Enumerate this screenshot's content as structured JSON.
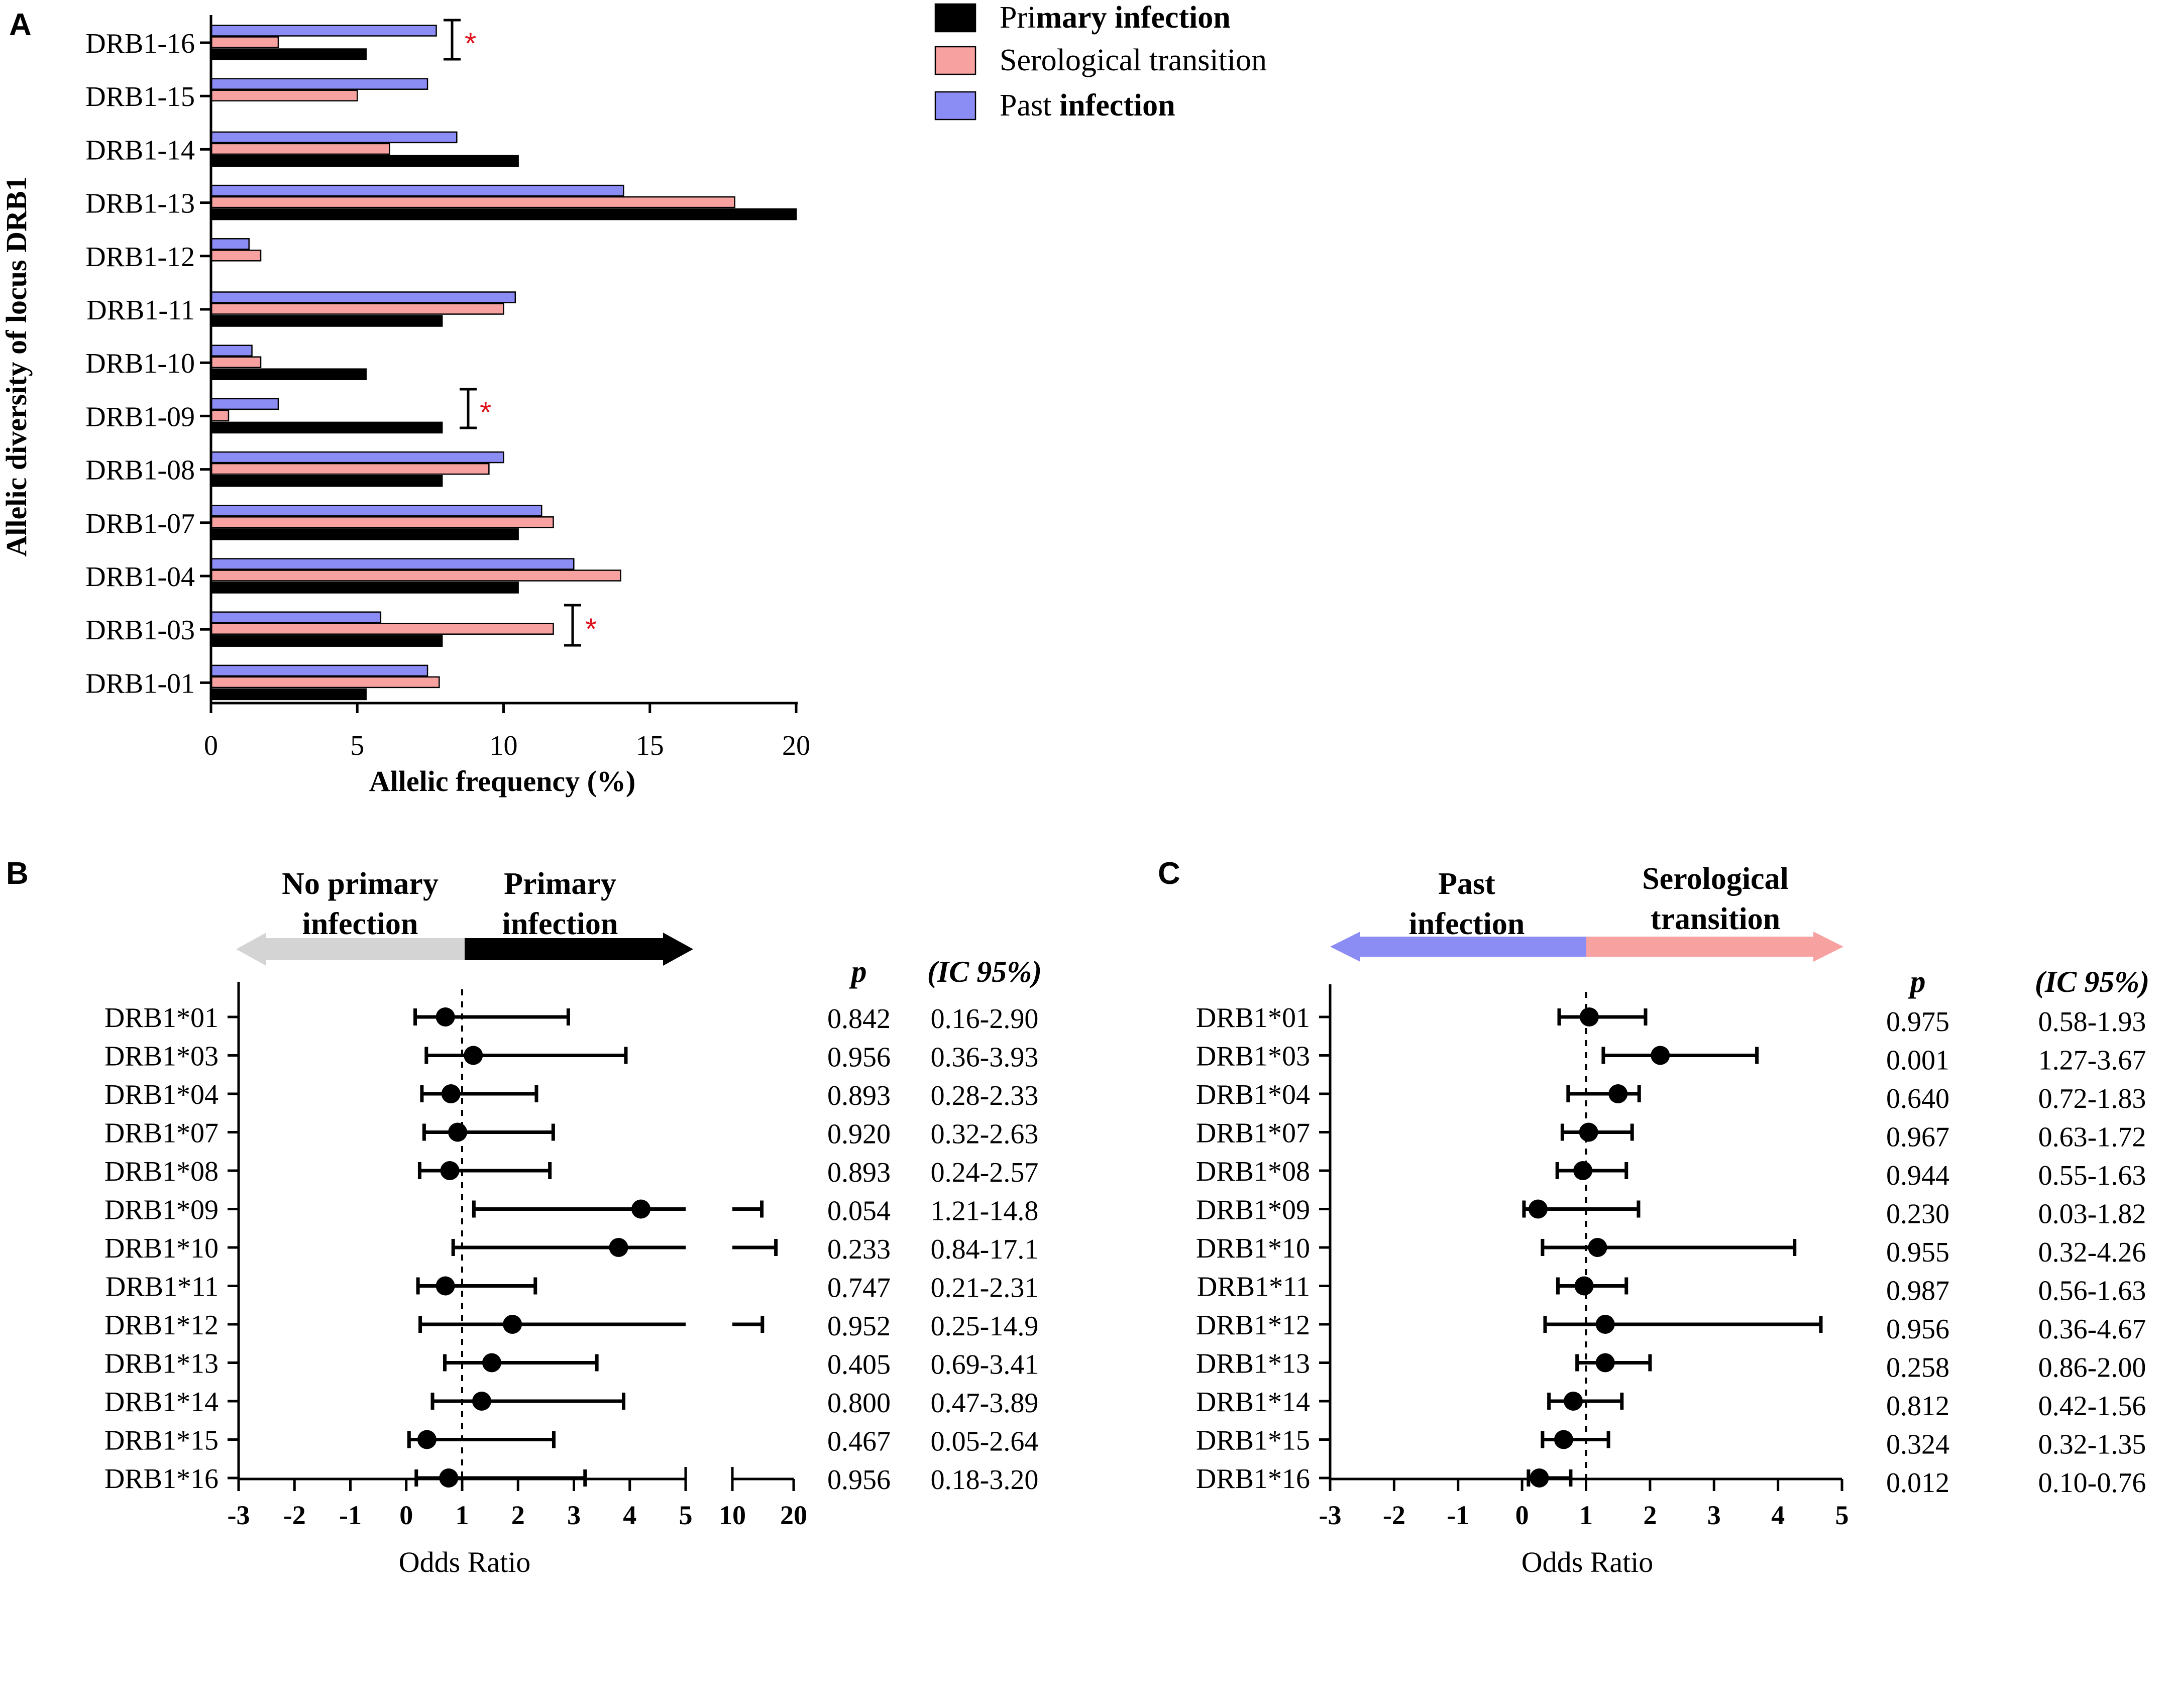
{
  "colors": {
    "primary": "#000000",
    "serological": "#F7A1A1",
    "past": "#8C8CF5",
    "star": "#E0141E",
    "gray_arrow": "#D4D4D4"
  },
  "chart_data": [
    {
      "panel": "A",
      "type": "bar",
      "orientation": "horizontal",
      "categories": [
        "DRB1-16",
        "DRB1-15",
        "DRB1-14",
        "DRB1-13",
        "DRB1-12",
        "DRB1-11",
        "DRB1-10",
        "DRB1-09",
        "DRB1-08",
        "DRB1-07",
        "DRB1-04",
        "DRB1-03",
        "DRB1-01"
      ],
      "series": [
        {
          "name": "Past infection",
          "values": [
            7.7,
            7.4,
            8.4,
            14.1,
            1.3,
            10.4,
            1.4,
            2.3,
            10.0,
            11.3,
            12.4,
            5.8,
            7.4
          ]
        },
        {
          "name": "Serological transition",
          "values": [
            2.3,
            5.0,
            6.1,
            17.9,
            1.7,
            10.0,
            1.7,
            0.6,
            9.5,
            11.7,
            14.0,
            11.7,
            7.8
          ]
        },
        {
          "name": "Primary infection",
          "values": [
            5.3,
            0,
            10.5,
            20.0,
            0,
            7.9,
            5.3,
            7.9,
            7.9,
            10.5,
            10.5,
            7.9,
            5.3
          ]
        }
      ],
      "significance": [
        "DRB1-16",
        "DRB1-09",
        "DRB1-03"
      ],
      "xlabel": "Allelic frequency (%)",
      "ylabel": "Allelic diversity of locus DRB1",
      "xlim": [
        0,
        20
      ],
      "xticks": [
        0,
        5,
        10,
        15,
        20
      ],
      "legend": [
        {
          "pre": "Pri",
          "bold": "mary infection"
        },
        {
          "pre": "Serological transition",
          "bold": ""
        },
        {
          "pre": "Past ",
          "bold": "infection"
        }
      ],
      "legend_position": "top-right"
    },
    {
      "panel": "B",
      "type": "forest",
      "header_left": [
        "No primary",
        "infection"
      ],
      "header_right": [
        "Primary",
        "infection"
      ],
      "col_p": "p",
      "col_ci": "(IC 95%)",
      "xlabel": "Odds Ratio",
      "xticks_main": [
        "-3",
        "-2",
        "-1",
        "0",
        "1",
        "2",
        "3",
        "4",
        "5"
      ],
      "xticks_break": [
        "10",
        "20"
      ],
      "reference_line": 1,
      "rows": [
        {
          "label": "DRB1*01",
          "or": 0.7,
          "lo": 0.16,
          "hi": 2.9,
          "p": "0.842",
          "ci": "0.16-2.90"
        },
        {
          "label": "DRB1*03",
          "or": 1.2,
          "lo": 0.36,
          "hi": 3.93,
          "p": "0.956",
          "ci": "0.36-3.93"
        },
        {
          "label": "DRB1*04",
          "or": 0.8,
          "lo": 0.28,
          "hi": 2.33,
          "p": "0.893",
          "ci": "0.28-2.33"
        },
        {
          "label": "DRB1*07",
          "or": 0.92,
          "lo": 0.32,
          "hi": 2.63,
          "p": "0.920",
          "ci": "0.32-2.63"
        },
        {
          "label": "DRB1*08",
          "or": 0.78,
          "lo": 0.24,
          "hi": 2.57,
          "p": "0.893",
          "ci": "0.24-2.57"
        },
        {
          "label": "DRB1*09",
          "or": 4.2,
          "lo": 1.21,
          "hi": 14.8,
          "p": "0.054",
          "ci": "1.21-14.8"
        },
        {
          "label": "DRB1*10",
          "or": 3.8,
          "lo": 0.84,
          "hi": 17.1,
          "p": "0.233",
          "ci": "0.84-17.1"
        },
        {
          "label": "DRB1*11",
          "or": 0.7,
          "lo": 0.21,
          "hi": 2.31,
          "p": "0.747",
          "ci": "0.21-2.31"
        },
        {
          "label": "DRB1*12",
          "or": 1.9,
          "lo": 0.25,
          "hi": 14.9,
          "p": "0.952",
          "ci": "0.25-14.9"
        },
        {
          "label": "DRB1*13",
          "or": 1.53,
          "lo": 0.69,
          "hi": 3.41,
          "p": "0.405",
          "ci": "0.69-3.41"
        },
        {
          "label": "DRB1*14",
          "or": 1.35,
          "lo": 0.47,
          "hi": 3.89,
          "p": "0.800",
          "ci": "0.47-3.89"
        },
        {
          "label": "DRB1*15",
          "or": 0.37,
          "lo": 0.05,
          "hi": 2.64,
          "p": "0.467",
          "ci": "0.05-2.64"
        },
        {
          "label": "DRB1*16",
          "or": 0.76,
          "lo": 0.18,
          "hi": 3.2,
          "p": "0.956",
          "ci": "0.18-3.20"
        }
      ]
    },
    {
      "panel": "C",
      "type": "forest",
      "header_left": [
        "Past",
        "infection"
      ],
      "header_right": [
        "Serological",
        "transition"
      ],
      "col_p": "p",
      "col_ci": "(IC 95%)",
      "xlabel": "Odds Ratio",
      "xticks_main": [
        "-3",
        "-2",
        "-1",
        "0",
        "1",
        "2",
        "3",
        "4",
        "5"
      ],
      "reference_line": 1,
      "rows": [
        {
          "label": "DRB1*01",
          "or": 1.05,
          "lo": 0.58,
          "hi": 1.93,
          "p": "0.975",
          "ci": "0.58-1.93"
        },
        {
          "label": "DRB1*03",
          "or": 2.16,
          "lo": 1.27,
          "hi": 3.67,
          "p": "0.001",
          "ci": "1.27-3.67"
        },
        {
          "label": "DRB1*04",
          "or": 1.5,
          "lo": 0.72,
          "hi": 1.83,
          "p": "0.640",
          "ci": "0.72-1.83"
        },
        {
          "label": "DRB1*07",
          "or": 1.04,
          "lo": 0.63,
          "hi": 1.72,
          "p": "0.967",
          "ci": "0.63-1.72"
        },
        {
          "label": "DRB1*08",
          "or": 0.95,
          "lo": 0.55,
          "hi": 1.63,
          "p": "0.944",
          "ci": "0.55-1.63"
        },
        {
          "label": "DRB1*09",
          "or": 0.25,
          "lo": 0.03,
          "hi": 1.82,
          "p": "0.230",
          "ci": "0.03-1.82"
        },
        {
          "label": "DRB1*10",
          "or": 1.18,
          "lo": 0.32,
          "hi": 4.26,
          "p": "0.955",
          "ci": "0.32-4.26"
        },
        {
          "label": "DRB1*11",
          "or": 0.97,
          "lo": 0.56,
          "hi": 1.63,
          "p": "0.987",
          "ci": "0.56-1.63"
        },
        {
          "label": "DRB1*12",
          "or": 1.3,
          "lo": 0.36,
          "hi": 4.67,
          "p": "0.956",
          "ci": "0.36-4.67"
        },
        {
          "label": "DRB1*13",
          "or": 1.3,
          "lo": 0.86,
          "hi": 2.0,
          "p": "0.258",
          "ci": "0.86-2.00"
        },
        {
          "label": "DRB1*14",
          "or": 0.8,
          "lo": 0.42,
          "hi": 1.56,
          "p": "0.812",
          "ci": "0.42-1.56"
        },
        {
          "label": "DRB1*15",
          "or": 0.65,
          "lo": 0.32,
          "hi": 1.35,
          "p": "0.324",
          "ci": "0.32-1.35"
        },
        {
          "label": "DRB1*16",
          "or": 0.27,
          "lo": 0.1,
          "hi": 0.76,
          "p": "0.012",
          "ci": "0.10-0.76"
        }
      ]
    }
  ],
  "panel_labels": {
    "a": "A",
    "b": "B",
    "c": "C"
  },
  "star": "*"
}
